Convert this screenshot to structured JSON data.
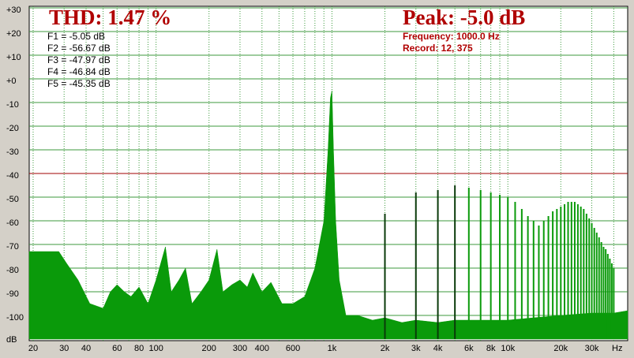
{
  "chart_data": {
    "type": "spectrum",
    "title": "THD: 1.47 %",
    "peak": "Peak: -5.0 dB",
    "info": [
      "Frequency: 1000.0 Hz",
      "Record: 12,  375"
    ],
    "annotations": [
      "F1 = -5.05 dB",
      "F2 = -56.67 dB",
      "F3 = -47.97 dB",
      "F4 = -46.84 dB",
      "F5 = -45.35 dB"
    ],
    "y_label": "dB",
    "x_label": "Hz",
    "log_x": true,
    "grid": true,
    "xlim": [
      19,
      48000
    ],
    "ylim": [
      -110,
      30
    ],
    "yticks": [
      {
        "value": 30,
        "label": "+30"
      },
      {
        "value": 20,
        "label": "+20"
      },
      {
        "value": 10,
        "label": "+10"
      },
      {
        "value": 0,
        "label": "+0"
      },
      -10,
      -20,
      -30,
      -40,
      -50,
      -60,
      -70,
      -80,
      -90,
      -100
    ],
    "xticks": [
      20,
      30,
      40,
      60,
      80,
      100,
      200,
      300,
      400,
      600,
      {
        "value": 1000,
        "label": "1k"
      },
      {
        "value": 2000,
        "label": "2k"
      },
      {
        "value": 3000,
        "label": "3k"
      },
      {
        "value": 4000,
        "label": "4k"
      },
      {
        "value": 6000,
        "label": "6k"
      },
      {
        "value": 8000,
        "label": "8k"
      },
      {
        "value": 10000,
        "label": "10k"
      },
      {
        "value": 20000,
        "label": "20k"
      },
      {
        "value": 30000,
        "label": "30k"
      }
    ],
    "x_minor_grid": [
      50,
      70,
      90,
      500,
      700,
      800,
      900,
      5000,
      7000,
      9000,
      40000
    ],
    "ref_line": {
      "value": -40,
      "color": "#a00000"
    },
    "series": [
      {
        "name": "spectrum",
        "color": "#0a9a0a",
        "x": [
          19,
          28,
          31,
          36,
          42,
          50,
          55,
          60,
          66,
          72,
          80,
          90,
          100,
          113,
          122,
          135,
          147,
          160,
          180,
          200,
          222,
          240,
          270,
          300,
          330,
          355,
          400,
          450,
          520,
          600,
          700,
          800,
          900,
          950,
          980,
          1000,
          1020,
          1050,
          1100,
          1200,
          1400,
          1700,
          2000,
          2500,
          3000,
          4000,
          5000,
          7000,
          10000,
          14000,
          20000,
          30000,
          40000,
          48000
        ],
        "values": [
          -73,
          -73,
          -78,
          -85,
          -95,
          -97,
          -90,
          -87,
          -90,
          -92,
          -88,
          -95,
          -85,
          -71,
          -90,
          -85,
          -80,
          -95,
          -90,
          -85,
          -72,
          -90,
          -87,
          -85,
          -88,
          -82,
          -90,
          -86,
          -95,
          -95,
          -92,
          -80,
          -60,
          -30,
          -8,
          -5,
          -30,
          -60,
          -85,
          -100,
          -100,
          -102,
          -101,
          -103,
          -102,
          -103,
          -102,
          -102,
          -102,
          -101,
          -100,
          -99,
          -99,
          -98
        ]
      },
      {
        "name": "harmonics",
        "color": "#0a9a0a",
        "x": [
          2000,
          3000,
          4000,
          5000,
          6000,
          7000,
          8000,
          9000,
          10000,
          11000,
          12000,
          13000,
          14000,
          15000,
          16000,
          17000,
          18000,
          19000,
          20000,
          21000,
          22000,
          23000,
          24000,
          25000,
          26000,
          27000,
          28000,
          29000,
          30000,
          31000,
          32000,
          33000,
          34000,
          35000,
          36000,
          37000,
          38000,
          39000,
          40000
        ],
        "values": [
          -57,
          -48,
          -47,
          -45,
          -46,
          -47,
          -48,
          -49,
          -50,
          -52,
          -55,
          -58,
          -60,
          -62,
          -60,
          -58,
          -56,
          -55,
          -54,
          -53,
          -52,
          -52,
          -52,
          -53,
          -54,
          -55,
          -57,
          -59,
          -61,
          -63,
          -65,
          -67,
          -69,
          -71,
          -72,
          -74,
          -76,
          -78,
          -80
        ]
      }
    ]
  }
}
